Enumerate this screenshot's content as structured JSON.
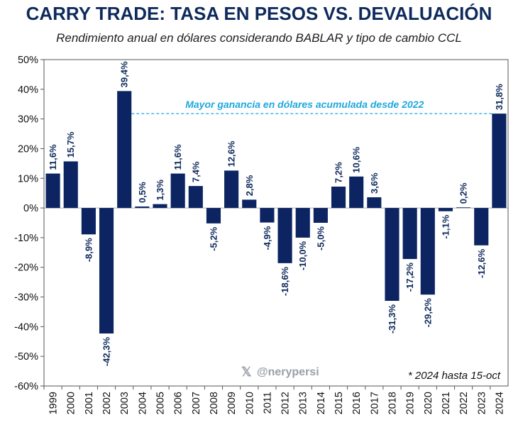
{
  "colors": {
    "bar": "#0c2461",
    "annotation": "#1fa8dc",
    "title": "#0e2a5c"
  },
  "chart_data": {
    "type": "bar",
    "title": "CARRY TRADE: TASA EN PESOS VS. DEVALUACIÓN",
    "subtitle": "Rendimiento anual en dólares considerando BABLAR y tipo de cambio CCL",
    "categories": [
      "1999",
      "2000",
      "2001",
      "2002",
      "2003",
      "2004",
      "2005",
      "2006",
      "2007",
      "2008",
      "2009",
      "2010",
      "2011",
      "2012",
      "2013",
      "2014",
      "2015",
      "2016",
      "2017",
      "2018",
      "2019",
      "2020",
      "2021",
      "2022",
      "2023",
      "2024"
    ],
    "values": [
      11.6,
      15.7,
      -8.9,
      -42.3,
      39.4,
      0.5,
      1.3,
      11.6,
      7.4,
      -5.2,
      12.6,
      2.8,
      -4.9,
      -18.6,
      -10.0,
      -5.0,
      7.2,
      10.6,
      3.6,
      -31.3,
      -17.2,
      -29.2,
      -1.1,
      0.2,
      -12.6,
      31.8
    ],
    "data_labels": [
      "11,6%",
      "15,7%",
      "-8,9%",
      "-42,3%",
      "39,4%",
      "0,5%",
      "1,3%",
      "11,6%",
      "7,4%",
      "-5,2%",
      "12,6%",
      "2,8%",
      "-4,9%",
      "-18,6%",
      "-10,0%",
      "-5,0%",
      "7,2%",
      "10,6%",
      "3,6%",
      "-31,3%",
      "-17,2%",
      "-29,2%",
      "-1,1%",
      "0,2%",
      "-12,6%",
      "31,8%"
    ],
    "ylim": [
      -60,
      50
    ],
    "y_ticks": [
      50,
      40,
      30,
      20,
      10,
      0,
      -10,
      -20,
      -30,
      -40,
      -50,
      -60
    ],
    "y_tick_labels": [
      "50%",
      "40%",
      "30%",
      "20%",
      "10%",
      "0%",
      "-10%",
      "-20%",
      "-30%",
      "-40%",
      "-50%",
      "-60%"
    ],
    "xlabel": "",
    "ylabel": "",
    "grid": false,
    "annotation": {
      "text": "Mayor ganancia en dólares acumulada desde 2022",
      "reference_value": 31.8,
      "from_category": "2003",
      "to_category": "2024"
    },
    "footnote": "* 2024 hasta 15-oct",
    "watermark": "@nerypersi"
  }
}
